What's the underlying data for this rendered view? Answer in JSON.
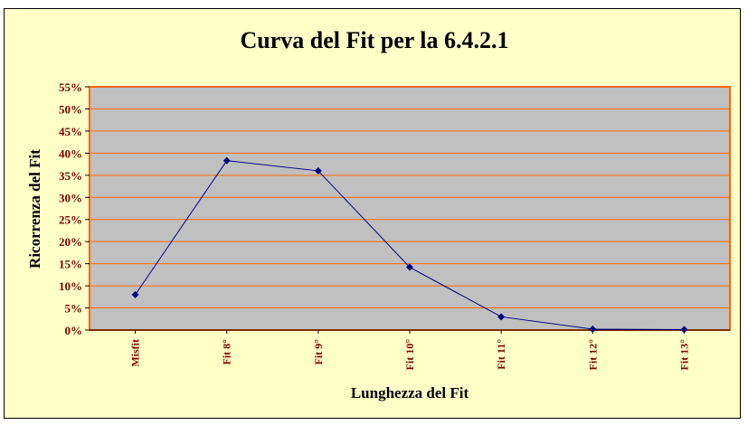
{
  "chart_data": {
    "type": "line",
    "title": "Curva del Fit per la 6.4.2.1",
    "xlabel": "Lunghezza del Fit",
    "ylabel": "Ricorrenza del Fit",
    "categories": [
      "Misfit",
      "Fit 8°",
      "Fit 9°",
      "Fit 10°",
      "Fit 11°",
      "Fit 12°",
      "Fit 13°"
    ],
    "series": [
      {
        "values": [
          8.0,
          38.3,
          36.0,
          14.2,
          3.0,
          0.2,
          0.1
        ]
      }
    ],
    "ylim": [
      0,
      55
    ],
    "yticks": [
      "0%",
      "5%",
      "10%",
      "15%",
      "20%",
      "25%",
      "30%",
      "35%",
      "40%",
      "45%",
      "50%",
      "55%"
    ],
    "grid": true,
    "legend": "none",
    "colors": {
      "background": "#ffffc8",
      "plot_area": "#c0c0c0",
      "plot_border": "#ff6600",
      "gridline": "#ff6600",
      "line": "#000080",
      "marker": "#000080",
      "text": "#800000"
    }
  }
}
